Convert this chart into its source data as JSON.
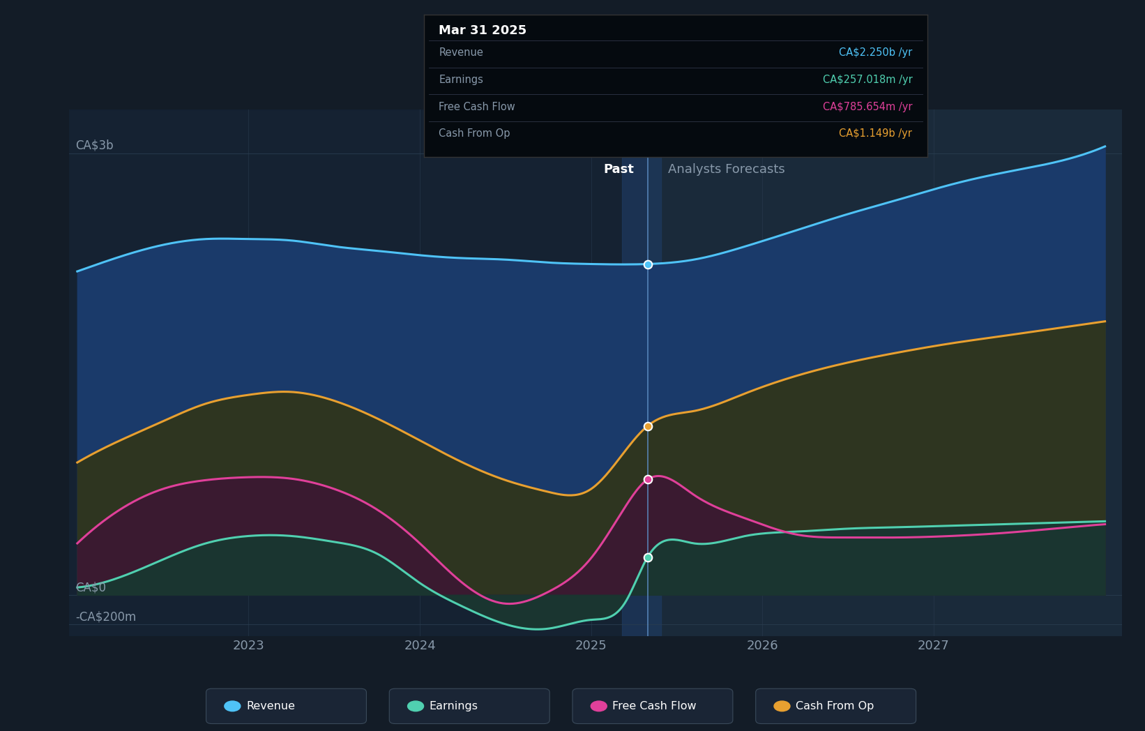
{
  "bg_color": "#131c27",
  "plot_bg_left": "#162030",
  "plot_bg_right": "#1a2a3a",
  "divider_band_color": "#1e3a5a",
  "grid_color": "#253545",
  "ylabel_ca3b": "CA$3b",
  "ylabel_ca0": "CA$0",
  "ylabel_neg200": "-CA$200m",
  "past_label": "Past",
  "forecast_label": "Analysts Forecasts",
  "divider_x": 2025.33,
  "xlim": [
    2021.95,
    2028.1
  ],
  "ylim": [
    -280000000,
    3300000000
  ],
  "ytick_vals": [
    -200000000,
    0,
    3000000000
  ],
  "xticks": [
    2023,
    2024,
    2025,
    2026,
    2027
  ],
  "revenue": {
    "color": "#4fc3f7",
    "fill_color": "#1a3a6a",
    "label": "Revenue",
    "x": [
      2022.0,
      2022.25,
      2022.5,
      2022.75,
      2023.0,
      2023.25,
      2023.5,
      2023.75,
      2024.0,
      2024.25,
      2024.5,
      2024.75,
      2025.0,
      2025.33,
      2025.6,
      2025.9,
      2026.2,
      2026.5,
      2026.8,
      2027.1,
      2027.4,
      2027.7,
      2028.0
    ],
    "y": [
      2200000000,
      2300000000,
      2380000000,
      2420000000,
      2420000000,
      2410000000,
      2370000000,
      2340000000,
      2310000000,
      2290000000,
      2280000000,
      2260000000,
      2250000000,
      2250000000,
      2280000000,
      2370000000,
      2480000000,
      2590000000,
      2690000000,
      2790000000,
      2870000000,
      2940000000,
      3050000000
    ]
  },
  "earnings": {
    "color": "#50d0b0",
    "fill_color": "#1a3530",
    "label": "Earnings",
    "x": [
      2022.0,
      2022.25,
      2022.5,
      2022.75,
      2023.0,
      2023.25,
      2023.5,
      2023.75,
      2024.0,
      2024.25,
      2024.5,
      2024.75,
      2025.0,
      2025.2,
      2025.33,
      2025.6,
      2025.9,
      2026.2,
      2026.5,
      2026.8,
      2027.1,
      2027.4,
      2027.7,
      2028.0
    ],
    "y": [
      50000000,
      120000000,
      240000000,
      350000000,
      400000000,
      400000000,
      360000000,
      280000000,
      80000000,
      -80000000,
      -200000000,
      -230000000,
      -170000000,
      -50000000,
      257000000,
      350000000,
      400000000,
      430000000,
      450000000,
      460000000,
      470000000,
      480000000,
      490000000,
      500000000
    ]
  },
  "free_cash_flow": {
    "color": "#e0409a",
    "fill_color": "#3a1a30",
    "label": "Free Cash Flow",
    "x": [
      2022.0,
      2022.25,
      2022.5,
      2022.75,
      2023.0,
      2023.25,
      2023.5,
      2023.75,
      2024.0,
      2024.25,
      2024.5,
      2024.75,
      2025.0,
      2025.2,
      2025.33,
      2025.6,
      2025.9,
      2026.2,
      2026.5,
      2026.8,
      2027.1,
      2027.4,
      2027.7,
      2028.0
    ],
    "y": [
      350000000,
      580000000,
      720000000,
      780000000,
      800000000,
      790000000,
      720000000,
      580000000,
      350000000,
      80000000,
      -60000000,
      20000000,
      250000000,
      600000000,
      785000000,
      680000000,
      520000000,
      410000000,
      390000000,
      390000000,
      400000000,
      420000000,
      450000000,
      480000000
    ]
  },
  "cash_from_op": {
    "color": "#e8a030",
    "fill_color": "#2a2a18",
    "label": "Cash From Op",
    "x": [
      2022.0,
      2022.25,
      2022.5,
      2022.75,
      2023.0,
      2023.25,
      2023.5,
      2023.75,
      2024.0,
      2024.25,
      2024.5,
      2024.75,
      2025.0,
      2025.33,
      2025.6,
      2025.9,
      2026.2,
      2026.5,
      2026.8,
      2027.1,
      2027.4,
      2027.7,
      2028.0
    ],
    "y": [
      900000000,
      1050000000,
      1180000000,
      1300000000,
      1360000000,
      1380000000,
      1320000000,
      1200000000,
      1050000000,
      900000000,
      780000000,
      700000000,
      720000000,
      1149000000,
      1250000000,
      1370000000,
      1490000000,
      1580000000,
      1650000000,
      1710000000,
      1760000000,
      1810000000,
      1860000000
    ]
  },
  "tooltip": {
    "date": "Mar 31 2025",
    "items": [
      {
        "label": "Revenue",
        "value": "CA$2.250b /yr",
        "color": "#4fc3f7"
      },
      {
        "label": "Earnings",
        "value": "CA$257.018m /yr",
        "color": "#50d0b0"
      },
      {
        "label": "Free Cash Flow",
        "value": "CA$785.654m /yr",
        "color": "#e0409a"
      },
      {
        "label": "Cash From Op",
        "value": "CA$1.149b /yr",
        "color": "#e8a030"
      }
    ]
  },
  "legend_items": [
    {
      "label": "Revenue",
      "color": "#4fc3f7"
    },
    {
      "label": "Earnings",
      "color": "#50d0b0"
    },
    {
      "label": "Free Cash Flow",
      "color": "#e0409a"
    },
    {
      "label": "Cash From Op",
      "color": "#e8a030"
    }
  ]
}
